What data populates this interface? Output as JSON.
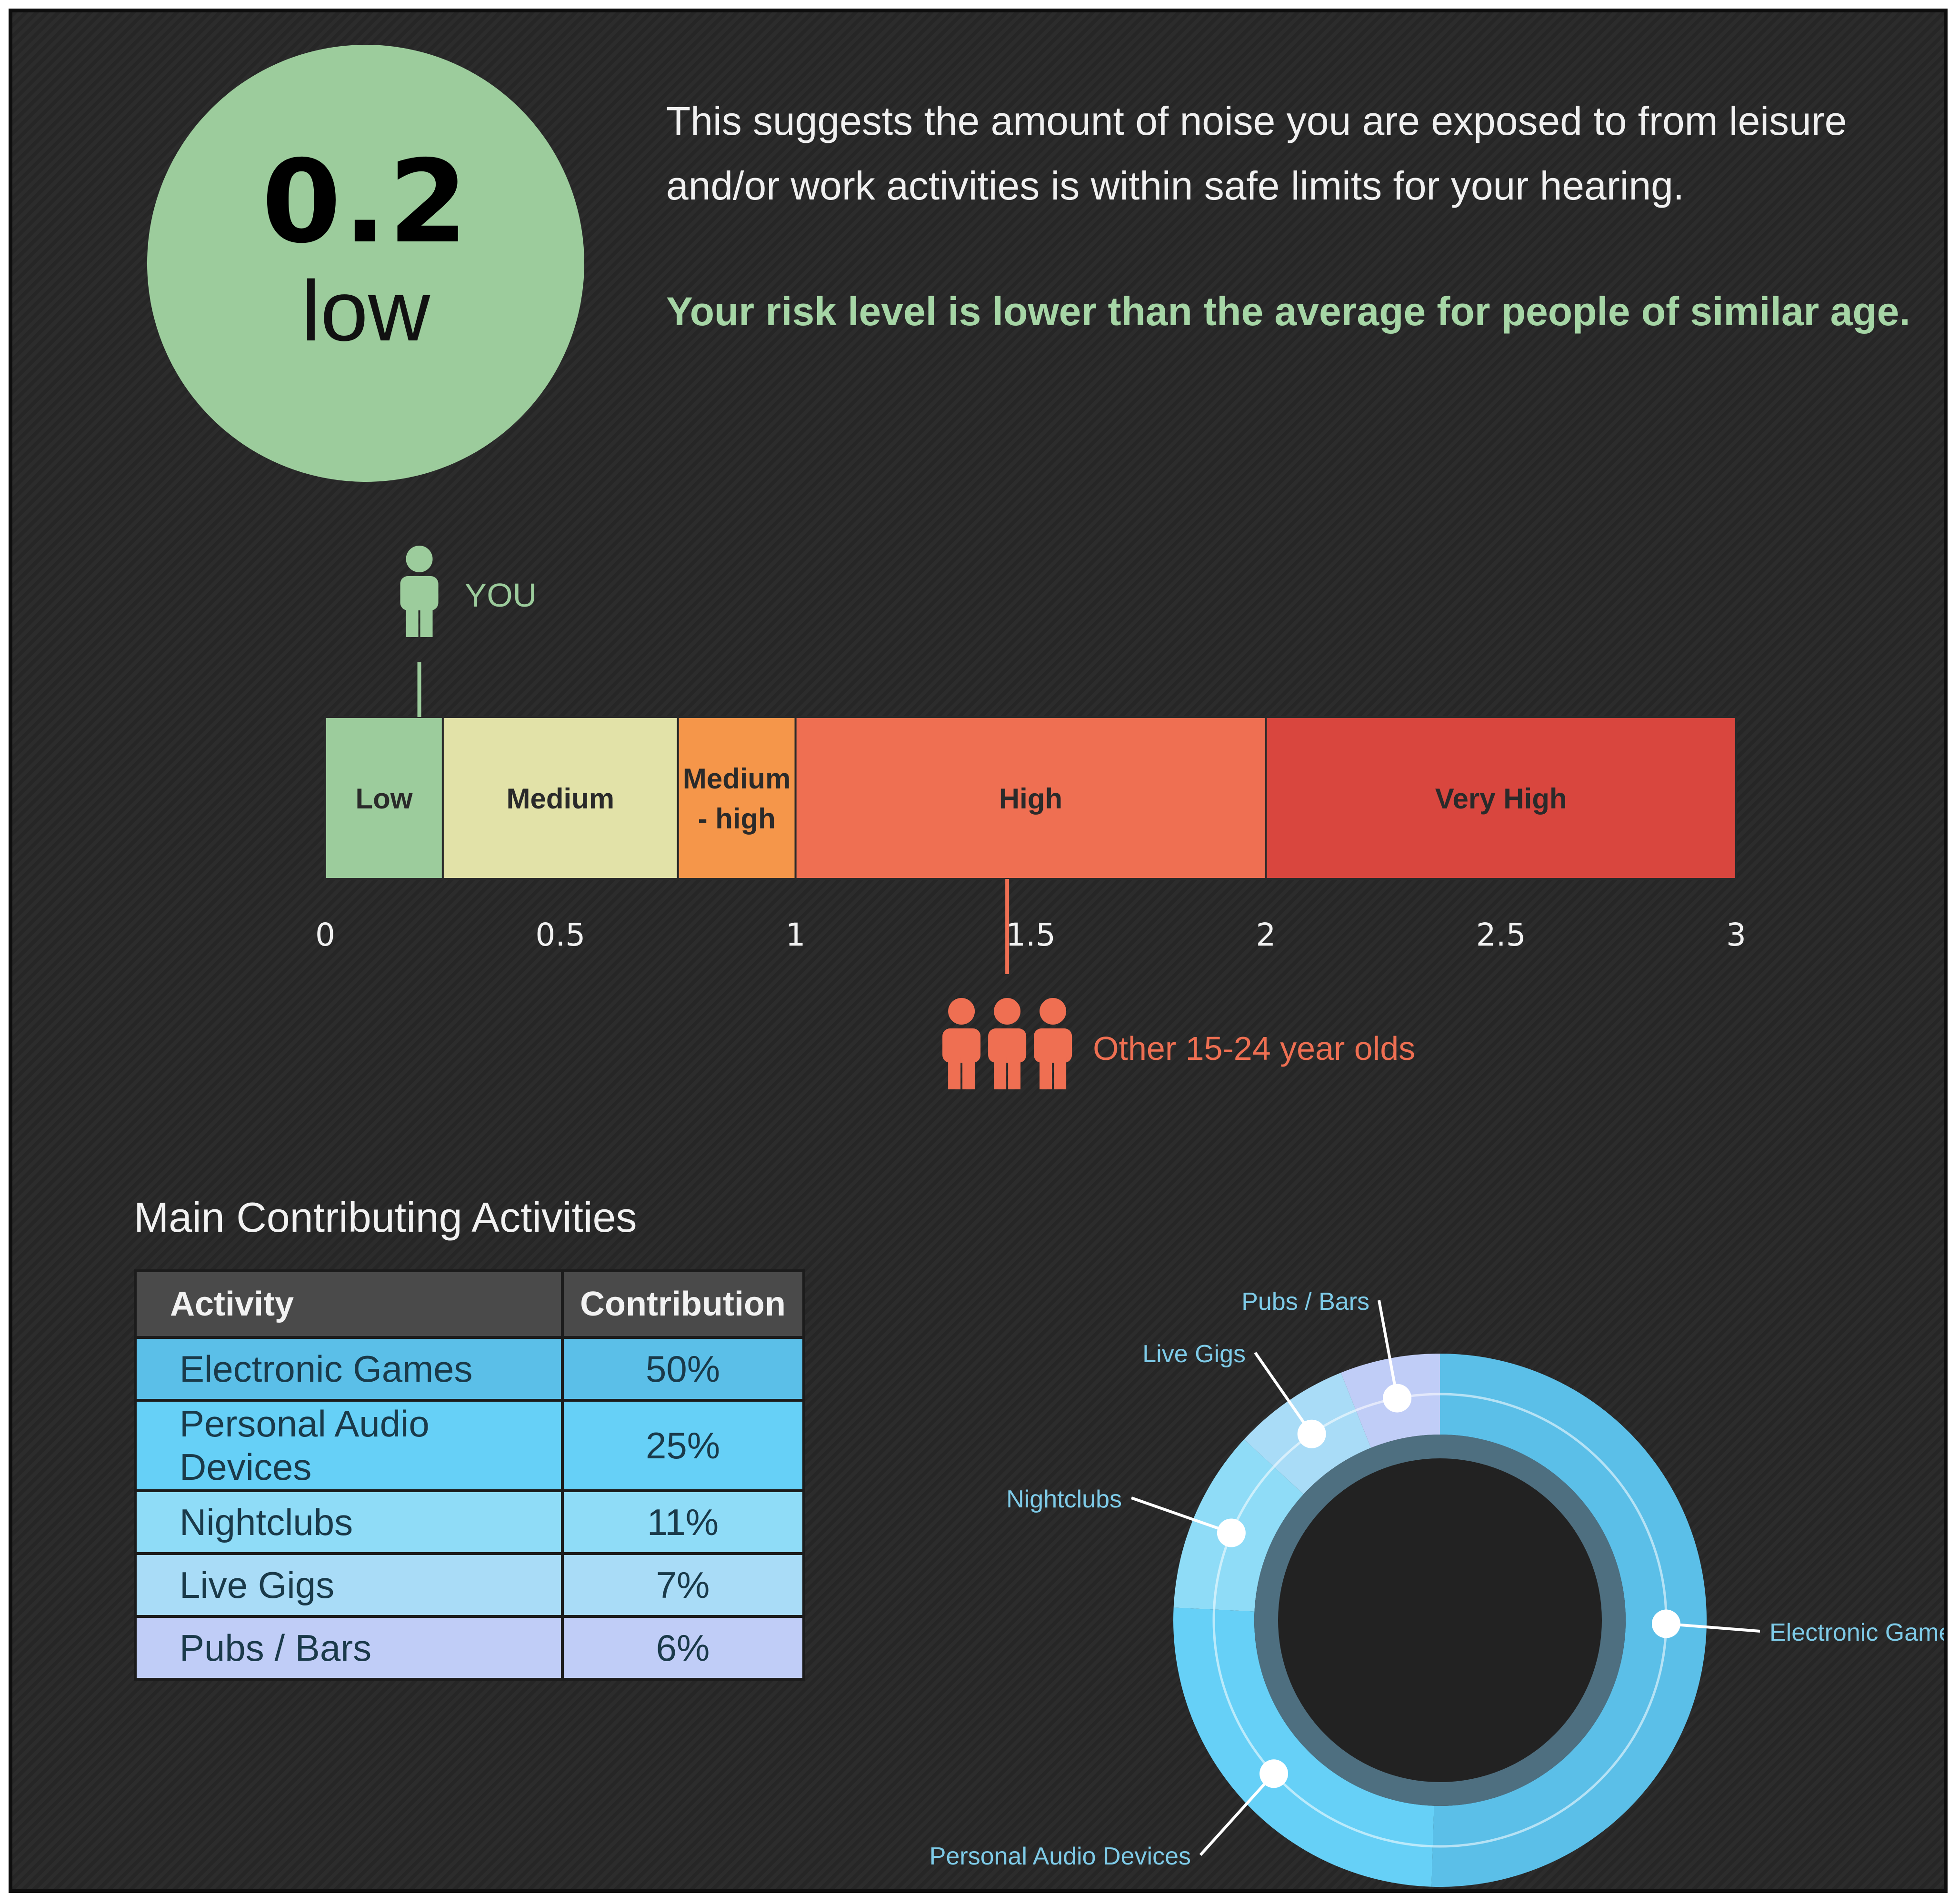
{
  "score": {
    "value": "0.2",
    "label": "low"
  },
  "summary_text": "This suggests the amount of noise you are exposed to from leisure and/or work activities is within safe limits for your hearing.",
  "comparison_text": "Your risk level is lower than the average for people of similar age.",
  "risk_scale": {
    "you_label": "YOU",
    "you_value": 0.2,
    "peer_label": "Other 15-24 year olds",
    "peer_value": 1.45,
    "range": [
      0,
      3
    ],
    "bands": [
      {
        "name": "Low",
        "from": 0,
        "to": 0.25,
        "color": "#9ccc9c"
      },
      {
        "name": "Medium",
        "from": 0.25,
        "to": 0.75,
        "color": "#e2e2a8"
      },
      {
        "name": "Medium\n- high",
        "from": 0.75,
        "to": 1,
        "color": "#f5964a"
      },
      {
        "name": "High",
        "from": 1,
        "to": 2,
        "color": "#ef6f52"
      },
      {
        "name": "Very High",
        "from": 2,
        "to": 3,
        "color": "#d9463e"
      }
    ],
    "ticks": [
      "0",
      "0.5",
      "1",
      "1.5",
      "2",
      "2.5",
      "3"
    ],
    "you_color": "#9ccc9c",
    "peer_color": "#ef6f52"
  },
  "activities": {
    "title": "Main Contributing Activities",
    "columns": [
      "Activity",
      "Contribution"
    ],
    "rows": [
      {
        "activity": "Electronic Games",
        "contribution": "50%",
        "color": "#5bbfe8"
      },
      {
        "activity": "Personal Audio Devices",
        "contribution": "25%",
        "color": "#66d0f7"
      },
      {
        "activity": "Nightclubs",
        "contribution": "11%",
        "color": "#8fdcf7"
      },
      {
        "activity": "Live Gigs",
        "contribution": "7%",
        "color": "#a9dcf7"
      },
      {
        "activity": "Pubs / Bars",
        "contribution": "6%",
        "color": "#c0cdf7"
      }
    ]
  },
  "chart_data": {
    "type": "pie",
    "categories": [
      "Electronic Games",
      "Personal Audio Devices",
      "Nightclubs",
      "Live Gigs",
      "Pubs / Bars"
    ],
    "values": [
      50,
      25,
      11,
      7,
      6
    ],
    "title": "",
    "colors": [
      "#5bbfe8",
      "#66d0f7",
      "#8fdcf7",
      "#a9dcf7",
      "#c0cdf7"
    ]
  }
}
